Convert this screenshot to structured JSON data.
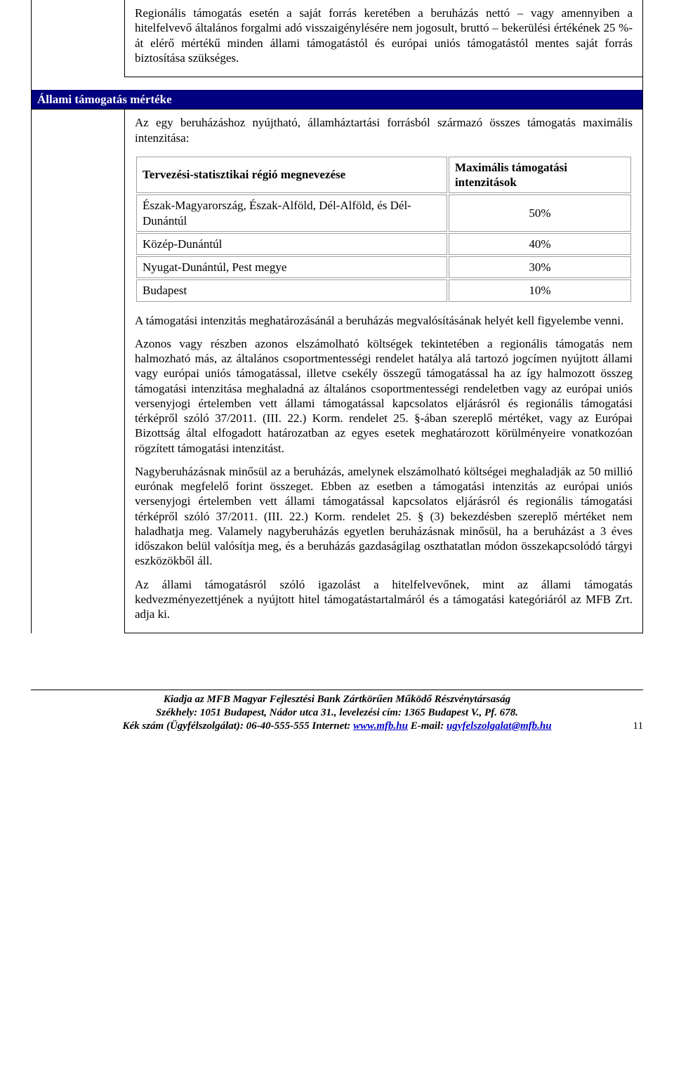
{
  "upperParagraph": "Regionális támogatás esetén a saját forrás keretében a beruházás nettó – vagy amennyiben a hitelfelvevő általános forgalmi adó visszaigénylésére nem jogosult, bruttó – bekerülési értékének 25 %-át elérő mértékű minden állami támogatástól és európai uniós támogatástól mentes saját forrás biztosítása szükséges.",
  "sectionTitle": "Állami támogatás mértéke",
  "intro": "Az egy beruházáshoz nyújtható, államháztartási forrásból származó összes támogatás maximális intenzitása:",
  "table": {
    "headers": [
      "Tervezési-statisztikai régió megnevezése",
      "Maximális támogatási intenzitások"
    ],
    "rows": [
      {
        "region": "Észak-Magyarország, Észak-Alföld, Dél-Alföld, és Dél-Dunántúl",
        "value": "50%"
      },
      {
        "region": "Közép-Dunántúl",
        "value": "40%"
      },
      {
        "region": "Nyugat-Dunántúl, Pest megye",
        "value": "30%"
      },
      {
        "region": "Budapest",
        "value": "10%"
      }
    ]
  },
  "para1": "A támogatási intenzitás meghatározásánál a beruházás megvalósításának helyét kell figyelembe venni.",
  "para2": "Azonos vagy részben azonos elszámolható költségek tekintetében a regionális támogatás nem halmozható más, az általános csoportmentességi rendelet hatálya alá tartozó jogcímen nyújtott állami vagy európai uniós támogatással, illetve csekély összegű támogatással ha az így halmozott összeg támogatási intenzitása meghaladná az általános csoportmentességi rendeletben vagy az európai uniós versenyjogi értelemben vett állami támogatással kapcsolatos eljárásról és regionális támogatási térképről szóló 37/2011. (III. 22.) Korm. rendelet 25. §-ában szereplő mértéket, vagy az Európai Bizottság által elfogadott határozatban az egyes esetek meghatározott körülményeire vonatkozóan rögzített támogatási intenzitást.",
  "para3": "Nagyberuházásnak minősül az a beruházás, amelynek elszámolható költségei meghaladják az 50 millió eurónak megfelelő forint összeget. Ebben az esetben a támogatási intenzitás az európai uniós versenyjogi értelemben vett állami támogatással kapcsolatos eljárásról és regionális támogatási térképről szóló 37/2011. (III. 22.) Korm. rendelet 25. § (3) bekezdésben szereplő mértéket nem haladhatja meg. Valamely nagyberuházás egyetlen beruházásnak minősül, ha a beruházást a 3 éves időszakon belül valósítja meg, és a beruházás gazdaságilag oszthatatlan módon összekapcsolódó tárgyi eszközökből áll.",
  "para4": "Az állami támogatásról szóló igazolást a hitelfelvevőnek, mint az állami támogatás kedvezményezettjének a nyújtott hitel támogatástartalmáról és a támogatási kategóriáról az MFB Zrt. adja ki.",
  "footer": {
    "line1": "Kiadja az MFB Magyar Fejlesztési Bank Zártkörűen Működő Részvénytársaság",
    "line2": "Székhely: 1051 Budapest, Nádor utca 31., levelezési cím: 1365 Budapest V., Pf. 678.",
    "line3_prefix": "Kék szám (Ügyfélszolgálat): 06-40-555-555 Internet: ",
    "link1": "www.mfb.hu",
    "line3_mid": " E-mail: ",
    "link2": "ugyfelszolgalat@mfb.hu",
    "pageNumber": "11"
  }
}
